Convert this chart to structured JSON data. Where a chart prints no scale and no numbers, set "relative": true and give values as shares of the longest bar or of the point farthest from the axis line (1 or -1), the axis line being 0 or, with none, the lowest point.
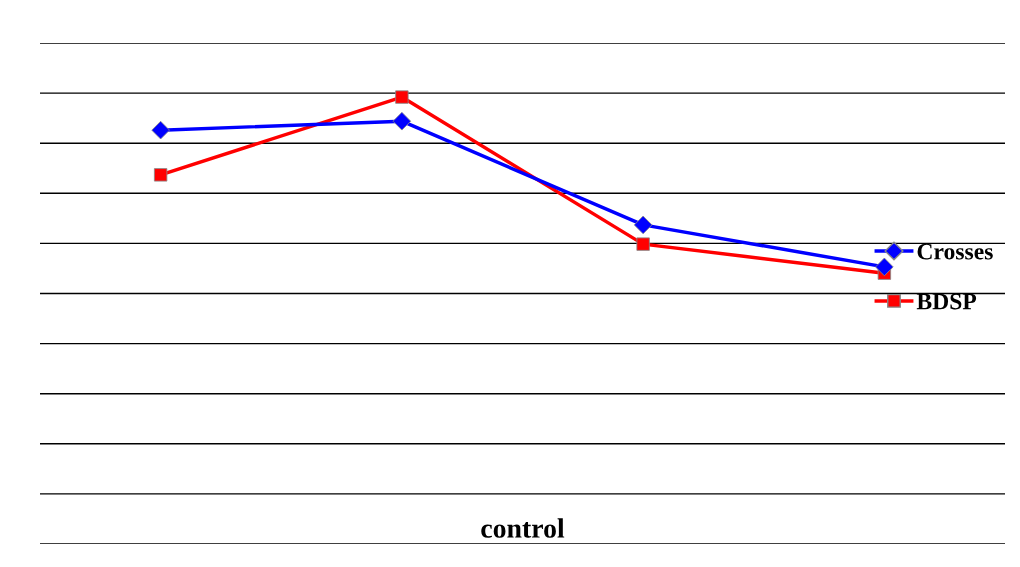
{
  "chart_data": {
    "type": "line",
    "relative": true,
    "xlabel": "control",
    "categories": [
      null,
      null,
      null,
      null
    ],
    "series": [
      {
        "name": "Crosses",
        "color": "#0000ff",
        "marker": "diamond",
        "values": [
          0.926,
          0.946,
          0.714,
          0.62
        ]
      },
      {
        "name": "BDSP",
        "color": "#ff0000",
        "marker": "square",
        "values": [
          0.826,
          1.0,
          0.671,
          0.606
        ]
      }
    ],
    "grid": "y",
    "legend": "right",
    "line_style": "solid"
  }
}
